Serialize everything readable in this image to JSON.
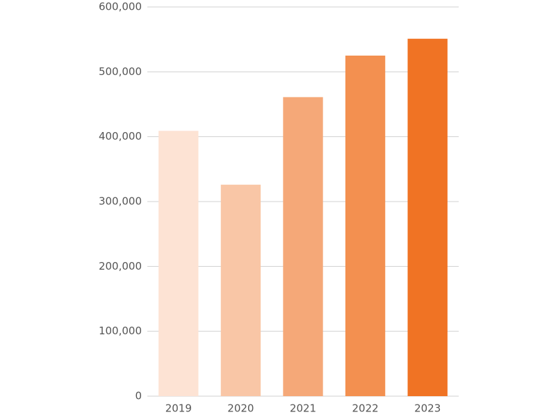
{
  "chart_data": {
    "type": "bar",
    "categories": [
      "2019",
      "2020",
      "2021",
      "2022",
      "2023"
    ],
    "values": [
      409000,
      326000,
      461000,
      525000,
      551000
    ],
    "colors": [
      "#fde3d4",
      "#f9c6a6",
      "#f5a878",
      "#f39050",
      "#f07324"
    ],
    "ylim": [
      0,
      600000
    ],
    "yticks": [
      0,
      {
        "value": 100000,
        "label": "100,000"
      },
      {
        "value": 200000,
        "label": "200,000"
      },
      {
        "value": 300000,
        "label": "300,000"
      },
      {
        "value": 400000,
        "label": "400,000"
      },
      {
        "value": 500000,
        "label": "500,000"
      },
      {
        "value": 600000,
        "label": "600,000"
      }
    ],
    "grid": true
  }
}
